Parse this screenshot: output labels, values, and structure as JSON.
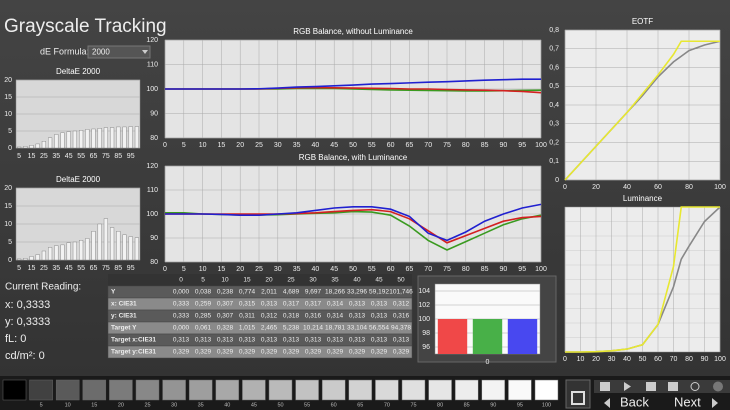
{
  "title": "Grayscale Tracking",
  "de_formula": {
    "label": "dE Formula:",
    "value": "2000"
  },
  "chart_data": [
    {
      "type": "bar",
      "title": "DeltaE 2000",
      "categories": [
        "5",
        null,
        "15",
        null,
        "25",
        null,
        "35",
        null,
        "45",
        null,
        "55",
        null,
        "65",
        null,
        "75",
        null,
        "85",
        null,
        "95",
        null
      ],
      "values": [
        0.3,
        0.5,
        0.8,
        1.2,
        2,
        3,
        4,
        4.5,
        4.8,
        5,
        5.2,
        5.5,
        5.6,
        5.8,
        6,
        6,
        6.2,
        6.2,
        6.3,
        6.3
      ],
      "color": "#f2f2f2",
      "ylim": [
        0,
        20
      ],
      "yticks": [
        0,
        5,
        10,
        15,
        20
      ],
      "grid": true
    },
    {
      "type": "bar",
      "title": "DeltaE 2000",
      "categories": [
        "5",
        null,
        "15",
        null,
        "25",
        null,
        "35",
        null,
        "45",
        null,
        "55",
        null,
        "65",
        null,
        "75",
        null,
        "85",
        null,
        "95",
        null
      ],
      "values": [
        0.3,
        0.5,
        1,
        1.5,
        2.5,
        3.5,
        4,
        4.2,
        4.8,
        5,
        5.5,
        6,
        8,
        10,
        11.5,
        9,
        8,
        7,
        6.5,
        6.2
      ],
      "color": "#f2f2f2",
      "ylim": [
        0,
        20
      ],
      "yticks": [
        0,
        5,
        10,
        15,
        20
      ],
      "grid": true
    },
    {
      "type": "line",
      "title": "RGB Balance, without Luminance",
      "x": [
        0,
        5,
        10,
        15,
        20,
        25,
        30,
        35,
        40,
        45,
        50,
        55,
        60,
        65,
        70,
        75,
        80,
        85,
        90,
        95,
        100
      ],
      "series": [
        {
          "color": "#3a9a20",
          "values": [
            100,
            100,
            100,
            100,
            100,
            100,
            100,
            100.2,
            100.3,
            100.2,
            100,
            99.8,
            99.6,
            99.5,
            99.4,
            99.3,
            99.2,
            99.2,
            99.3,
            99.4,
            99.5
          ]
        },
        {
          "color": "#d42020",
          "values": [
            100,
            100,
            100,
            100,
            100,
            100,
            100.3,
            100.5,
            100.6,
            100.5,
            100.4,
            100.3,
            100.2,
            100,
            100,
            99.8,
            99.6,
            99.5,
            99.3,
            99,
            98.5
          ]
        },
        {
          "color": "#2020d0",
          "values": [
            100,
            100,
            100,
            100,
            100,
            100.1,
            100.4,
            100.8,
            101,
            101.3,
            101.6,
            102,
            102.2,
            102.5,
            102.8,
            103,
            103.3,
            103.6,
            103.8,
            104,
            104
          ]
        }
      ],
      "xlim": [
        0,
        100
      ],
      "xticks": [
        0,
        5,
        10,
        15,
        20,
        25,
        30,
        35,
        40,
        45,
        50,
        55,
        60,
        65,
        70,
        75,
        80,
        85,
        90,
        95,
        100
      ],
      "ylim": [
        80,
        120
      ],
      "yticks": [
        80,
        90,
        100,
        110,
        120
      ],
      "grid": true
    },
    {
      "type": "line",
      "title": "RGB Balance, with Luminance",
      "x": [
        0,
        5,
        10,
        15,
        20,
        25,
        30,
        35,
        40,
        45,
        50,
        55,
        60,
        65,
        70,
        75,
        80,
        85,
        90,
        95,
        100
      ],
      "series": [
        {
          "color": "#3a9a20",
          "values": [
            100.5,
            100.5,
            100,
            99.8,
            99.6,
            99.6,
            99.7,
            100,
            100.3,
            100.5,
            101,
            100.8,
            99.5,
            95,
            89,
            85,
            88.5,
            92,
            95.5,
            98,
            99.5
          ]
        },
        {
          "color": "#d42020",
          "values": [
            100,
            100,
            100,
            100,
            100,
            100,
            100,
            100.2,
            100.5,
            101,
            101.5,
            101.8,
            101,
            98,
            93,
            88,
            91,
            94,
            97,
            98.5,
            99
          ]
        },
        {
          "color": "#2020d0",
          "values": [
            100,
            100,
            100,
            99.8,
            99.5,
            99.5,
            100,
            100.5,
            101.5,
            102.5,
            103,
            103,
            102,
            99,
            92,
            89,
            92.5,
            97,
            100,
            102.5,
            104
          ]
        }
      ],
      "xlim": [
        0,
        100
      ],
      "xticks": [
        0,
        5,
        10,
        15,
        20,
        25,
        30,
        35,
        40,
        45,
        50,
        55,
        60,
        65,
        70,
        75,
        80,
        85,
        90,
        95,
        100
      ],
      "ylim": [
        80,
        120
      ],
      "yticks": [
        80,
        90,
        100,
        110,
        120
      ],
      "grid": true
    },
    {
      "type": "line",
      "title": "EOTF",
      "x": [
        0,
        10,
        20,
        30,
        40,
        50,
        60,
        70,
        75,
        80,
        90,
        100
      ],
      "series": [
        {
          "color": "#888888",
          "values": [
            0,
            0.09,
            0.18,
            0.27,
            0.36,
            0.45,
            0.55,
            0.63,
            0.66,
            0.69,
            0.72,
            0.74
          ]
        },
        {
          "color": "#e8e830",
          "values": [
            0,
            0.09,
            0.18,
            0.27,
            0.36,
            0.46,
            0.56,
            0.67,
            0.74,
            0.74,
            0.74,
            0.74
          ]
        }
      ],
      "xlim": [
        0,
        100
      ],
      "xticks": [
        0,
        20,
        40,
        60,
        80,
        100
      ],
      "ylim": [
        0,
        0.8
      ],
      "yticks": [
        0,
        {
          "value": 0.1,
          "label": "0,1"
        },
        {
          "value": 0.2,
          "label": "0,2"
        },
        {
          "value": 0.3,
          "label": "0,3"
        },
        {
          "value": 0.4,
          "label": "0,4"
        },
        {
          "value": 0.5,
          "label": "0,5"
        },
        {
          "value": 0.6,
          "label": "0,6"
        },
        {
          "value": 0.7,
          "label": "0,7"
        },
        {
          "value": 0.8,
          "label": "0,8"
        }
      ],
      "grid": true
    },
    {
      "type": "line",
      "title": "Luminance",
      "x": [
        0,
        10,
        20,
        30,
        40,
        50,
        60,
        70,
        75,
        80,
        90,
        100
      ],
      "series": [
        {
          "color": "#888888",
          "values": [
            0,
            0,
            0.2,
            0.8,
            2,
            5,
            19,
            45,
            64,
            73,
            90,
            100
          ]
        },
        {
          "color": "#e8e830",
          "values": [
            0,
            0,
            0.2,
            0.8,
            2,
            5,
            19,
            59,
            100,
            100,
            100,
            100
          ]
        }
      ],
      "xlim": [
        0,
        100
      ],
      "xticks": [
        0,
        10,
        20,
        30,
        40,
        50,
        60,
        70,
        80,
        90,
        100
      ],
      "ylim": [
        0,
        100
      ],
      "grid": true
    },
    {
      "type": "bar",
      "categories": [
        "0"
      ],
      "series": [
        {
          "color": "#f04848",
          "values": [
            100
          ]
        },
        {
          "color": "#48b048",
          "values": [
            100
          ]
        },
        {
          "color": "#4848f0",
          "values": [
            100
          ]
        }
      ],
      "ylim": [
        95,
        105
      ],
      "yticks": [
        96,
        98,
        100,
        102,
        104
      ],
      "grid": true
    }
  ],
  "current_reading": {
    "label": "Current Reading:",
    "x": "x: 0,3333",
    "y": "y: 0,3333",
    "fl": "fL: 0",
    "cdm2": "cd/m²: 0"
  },
  "table": {
    "header": [
      "0",
      "5",
      "10",
      "15",
      "20",
      "25",
      "30",
      "35",
      "40",
      "45",
      "50"
    ],
    "rows": [
      [
        "Y",
        "0,000",
        "0,038",
        "0,238",
        "0,774",
        "2,011",
        "4,689",
        "9,697",
        "18,266",
        "33,296",
        "59,192",
        "101,746"
      ],
      [
        "x: CIE31",
        "0,333",
        "0,259",
        "0,307",
        "0,315",
        "0,313",
        "0,317",
        "0,317",
        "0,314",
        "0,313",
        "0,313",
        "0,312"
      ],
      [
        "y: CIE31",
        "0,333",
        "0,285",
        "0,307",
        "0,311",
        "0,312",
        "0,318",
        "0,316",
        "0,314",
        "0,313",
        "0,313",
        "0,316"
      ],
      [
        "Target Y",
        "0,000",
        "0,061",
        "0,328",
        "1,015",
        "2,465",
        "5,238",
        "10,214",
        "18,781",
        "33,104",
        "56,554",
        "94,378"
      ],
      [
        "Target x:CIE31",
        "0,313",
        "0,313",
        "0,313",
        "0,313",
        "0,313",
        "0,313",
        "0,313",
        "0,313",
        "0,313",
        "0,313",
        "0,313"
      ],
      [
        "Target y:CIE31",
        "0,329",
        "0,329",
        "0,329",
        "0,329",
        "0,329",
        "0,329",
        "0,329",
        "0,329",
        "0,329",
        "0,329",
        "0,329"
      ]
    ]
  },
  "swatches": {
    "labels": [
      "5",
      "10",
      "15",
      "20",
      "25",
      "30",
      "35",
      "40",
      "45",
      "50",
      "55",
      "60",
      "65",
      "70",
      "75",
      "80",
      "85",
      "90",
      "95",
      "100"
    ]
  },
  "buttons": {
    "back": "Back",
    "next": "Next"
  }
}
